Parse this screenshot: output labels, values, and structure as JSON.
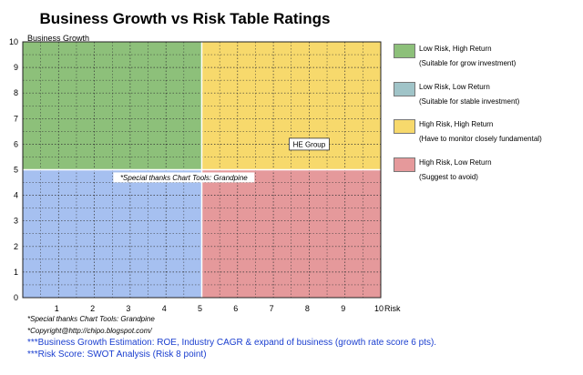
{
  "chart_data": {
    "type": "scatter",
    "title": "Business Growth vs Risk Table Ratings",
    "xlabel": "Risk",
    "ylabel": "Business Growth",
    "xlim": [
      0,
      10
    ],
    "ylim": [
      0,
      10
    ],
    "x_ticks": [
      1,
      2,
      3,
      4,
      5,
      6,
      7,
      8,
      9,
      10
    ],
    "y_ticks": [
      0,
      1,
      2,
      3,
      4,
      5,
      6,
      7,
      8,
      9,
      10
    ],
    "grid": true,
    "quadrants": [
      {
        "name": "Low Risk, High Return",
        "x_range": [
          0,
          5
        ],
        "y_range": [
          5,
          10
        ],
        "color": "#8dc07a"
      },
      {
        "name": "High Risk, High Return",
        "x_range": [
          5,
          10
        ],
        "y_range": [
          5,
          10
        ],
        "color": "#f7d96c"
      },
      {
        "name": "Low Risk, Low Return",
        "x_range": [
          0,
          5
        ],
        "y_range": [
          0,
          5
        ],
        "color": "#a6c0f0"
      },
      {
        "name": "High Risk, Low Return",
        "x_range": [
          5,
          10
        ],
        "y_range": [
          0,
          5
        ],
        "color": "#e5999b"
      }
    ],
    "points": [
      {
        "label": "HE Group",
        "x": 8,
        "y": 6
      }
    ],
    "annotations": [
      {
        "text": "*Special thanks Chart Tools: Grandpine",
        "x": 4.5,
        "y": 4.7
      }
    ]
  },
  "legend": [
    {
      "label": "Low Risk, High Return",
      "sub": "(Suitable for grow investment)",
      "color": "#8dc07a"
    },
    {
      "label": "Low Risk, Low Return",
      "sub": "(Suitable for stable investment)",
      "color": "#a0c4c8"
    },
    {
      "label": "High Risk, High Return",
      "sub": "(Have to monitor closely  fundamental)",
      "color": "#f7d96c"
    },
    {
      "label": "High Risk, Low Return",
      "sub": "(Suggest to avoid)",
      "color": "#e5999b"
    }
  ],
  "notes": {
    "thanks": "*Special thanks Chart Tools: Grandpine",
    "copyright": "*Copyright@http://chipo.blogspot.com/",
    "growth_estimation": "***Business Growth Estimation: ROE, Industry CAGR & expand of business (growth rate score 6 pts).",
    "risk_score": "***Risk Score: SWOT Analysis (Risk 8 point)"
  }
}
